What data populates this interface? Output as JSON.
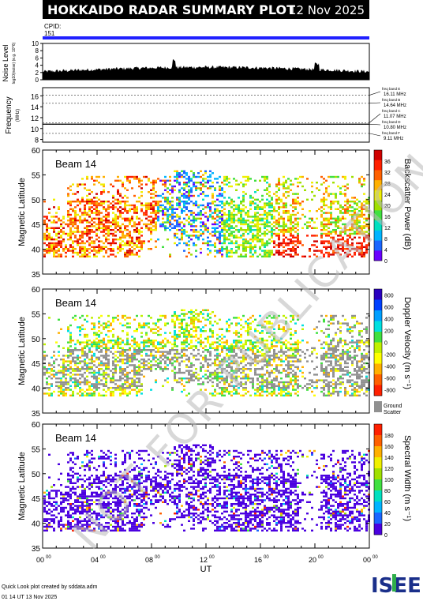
{
  "header": {
    "title": "HOKKAIDO RADAR SUMMARY PLOT",
    "date": "12 Nov 2025",
    "cpid_label": "CPID:",
    "cpid_value": "151"
  },
  "noise_panel": {
    "ylabel": "Noise Level",
    "ylabel_sub": "log10(noise) (e.g. 10^6)",
    "yticks": [
      "0",
      "2",
      "4",
      "6",
      "8",
      "10"
    ],
    "ylim": [
      0,
      10
    ]
  },
  "freq_panel": {
    "ylabel": "Frequency",
    "ylabel_unit": "(MHz)",
    "yticks": [
      "8",
      "10",
      "12",
      "14",
      "16"
    ],
    "ylim": [
      7.5,
      17.5
    ],
    "bands": [
      {
        "name": "freq band E",
        "label": "16.11 MHz",
        "mhz": 16.11
      },
      {
        "name": "freq band B",
        "label": "14.64 MHz",
        "mhz": 14.64
      },
      {
        "name": "freq band C",
        "label": "11.07 MHz",
        "mhz": 11.07
      },
      {
        "name": "freq band D",
        "label": "10.80 MHz",
        "mhz": 10.8
      },
      {
        "name": "freq band F",
        "label": "9.11 MHz",
        "mhz": 9.11
      }
    ]
  },
  "beam_panels": [
    {
      "id": "power",
      "beam_label": "Beam 14",
      "ylabel": "Magnetic Latitude",
      "cbar_label": "Backscatter Power (dB)",
      "cbar_ticks": [
        "0",
        "4",
        "8",
        "12",
        "16",
        "20",
        "24",
        "28",
        "32",
        "36"
      ],
      "cbar_colors": [
        "#6a00ff",
        "#1a66ff",
        "#00b4ff",
        "#00e0c0",
        "#40e040",
        "#a0e000",
        "#f0f000",
        "#ffb000",
        "#ff6000",
        "#ff2000",
        "#d00000"
      ]
    },
    {
      "id": "velocity",
      "beam_label": "Beam 14",
      "ylabel": "Magnetic Latitude",
      "cbar_label": "Doppler Velocity (m s⁻¹)",
      "cbar_ticks": [
        "800",
        "600",
        "400",
        "200",
        "0",
        "-200",
        "-400",
        "-600",
        "-800"
      ],
      "cbar_colors": [
        "#2a00c0",
        "#0040ff",
        "#00a0ff",
        "#00e0e0",
        "#40e040",
        "#c0f000",
        "#ffff00",
        "#ffb000",
        "#ff6000",
        "#ff2000"
      ],
      "ground_label": "Ground",
      "ground_label2": "Scatter"
    },
    {
      "id": "width",
      "beam_label": "Beam 14",
      "ylabel": "Magnetic Latitude",
      "cbar_label": "Spectral Width (m s⁻¹)",
      "cbar_ticks": [
        "0",
        "20",
        "40",
        "60",
        "80",
        "100",
        "120",
        "140",
        "160",
        "180"
      ],
      "cbar_colors": [
        "#4a00e0",
        "#1a66ff",
        "#00b4ff",
        "#00e0c0",
        "#40e040",
        "#a0e000",
        "#f0f000",
        "#ffb000",
        "#ff6000",
        "#ff2000"
      ]
    }
  ],
  "chart_data": {
    "type": "heatmap",
    "x_ticks": [
      "00",
      "04",
      "08",
      "12",
      "16",
      "20",
      "00"
    ],
    "x_tick_sup": "00",
    "xlabel": "UT",
    "ylim": [
      35,
      60
    ],
    "yticks": [
      "35",
      "40",
      "45",
      "50",
      "55",
      "60"
    ]
  },
  "footer": {
    "credit": "Quick Look plot created by sddata.adm",
    "created": "01 14 UT 13 Nov 2025",
    "watermark": "NOT FOR PUBLICATION",
    "logo": "ISEE"
  },
  "colors": {
    "blue_bar": "#2020ff",
    "ground": "#909090",
    "watermark": "#b8b8b8"
  }
}
